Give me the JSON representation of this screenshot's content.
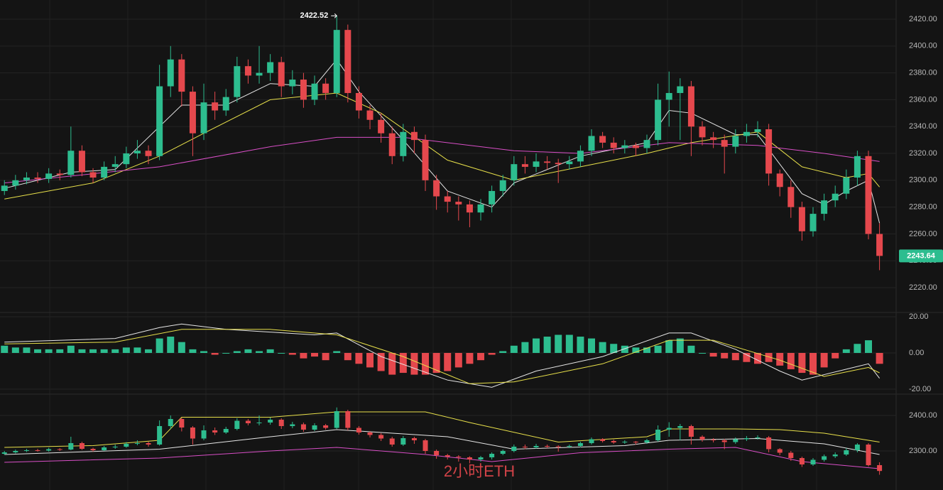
{
  "watermark": "2小时ETH",
  "chart_data": [
    {
      "type": "candlestick",
      "xlim": [
        -0.4,
        80.5
      ],
      "ylim": [
        2201.5,
        2434.3
      ],
      "grid": true,
      "up_color": "#2dbd8f",
      "down_color": "#e5484d",
      "yticks": [
        {
          "value": 2220,
          "label": "2220.00"
        },
        {
          "value": 2240,
          "label": "2240.00"
        },
        {
          "value": 2260,
          "label": "2260.00"
        },
        {
          "value": 2280,
          "label": "2280.00"
        },
        {
          "value": 2300,
          "label": "2300.00"
        },
        {
          "value": 2320,
          "label": "2320.00"
        },
        {
          "value": 2340,
          "label": "2340.00"
        },
        {
          "value": 2360,
          "label": "2360.00"
        },
        {
          "value": 2380,
          "label": "2380.00"
        },
        {
          "value": 2400,
          "label": "2400.00"
        },
        {
          "value": 2420,
          "label": "2420.00"
        }
      ],
      "open": [
        2292,
        2296,
        2300,
        2302,
        2301,
        2305,
        2304,
        2322,
        2306,
        2302,
        2310,
        2312,
        2320,
        2322,
        2318,
        2370,
        2390,
        2366,
        2335,
        2358,
        2352,
        2362,
        2385,
        2378,
        2380,
        2388,
        2370,
        2375,
        2360,
        2372,
        2365,
        2412,
        2365,
        2352,
        2345,
        2335,
        2318,
        2336,
        2330,
        2300,
        2288,
        2284,
        2282,
        2276,
        2282,
        2292,
        2300,
        2312,
        2310,
        2314,
        2313,
        2312,
        2314,
        2322,
        2333,
        2328,
        2324,
        2326,
        2324,
        2330,
        2360,
        2365,
        2370,
        2340,
        2332,
        2330,
        2325,
        2333,
        2336,
        2338,
        2305,
        2295,
        2280,
        2262,
        2275,
        2285,
        2290,
        2302,
        2318,
        2260
      ],
      "high": [
        2300,
        2304,
        2306,
        2306,
        2309,
        2308,
        2340,
        2326,
        2309,
        2314,
        2318,
        2325,
        2330,
        2326,
        2386,
        2400,
        2394,
        2370,
        2372,
        2366,
        2368,
        2392,
        2390,
        2400,
        2394,
        2392,
        2382,
        2380,
        2378,
        2376,
        2422.52,
        2416,
        2370,
        2356,
        2350,
        2340,
        2342,
        2340,
        2334,
        2304,
        2292,
        2288,
        2285,
        2286,
        2296,
        2304,
        2318,
        2318,
        2320,
        2318,
        2316,
        2318,
        2326,
        2338,
        2336,
        2332,
        2330,
        2328,
        2334,
        2372,
        2381,
        2376,
        2374,
        2344,
        2336,
        2334,
        2338,
        2342,
        2344,
        2342,
        2308,
        2300,
        2284,
        2280,
        2290,
        2296,
        2308,
        2322,
        2322,
        2268
      ],
      "low": [
        2289,
        2293,
        2297,
        2298,
        2298,
        2300,
        2302,
        2303,
        2298,
        2300,
        2306,
        2309,
        2316,
        2312,
        2315,
        2362,
        2355,
        2318,
        2330,
        2345,
        2348,
        2358,
        2372,
        2372,
        2374,
        2362,
        2364,
        2354,
        2356,
        2360,
        2362,
        2358,
        2346,
        2338,
        2328,
        2312,
        2314,
        2320,
        2292,
        2278,
        2276,
        2270,
        2265,
        2270,
        2276,
        2288,
        2296,
        2305,
        2306,
        2308,
        2298,
        2308,
        2310,
        2318,
        2324,
        2320,
        2320,
        2318,
        2320,
        2326,
        2340,
        2330,
        2318,
        2326,
        2324,
        2305,
        2320,
        2328,
        2332,
        2296,
        2288,
        2272,
        2255,
        2258,
        2270,
        2280,
        2286,
        2296,
        2256,
        2233
      ],
      "close": [
        2296,
        2300,
        2302,
        2301,
        2305,
        2304,
        2322,
        2306,
        2302,
        2310,
        2312,
        2320,
        2322,
        2318,
        2370,
        2390,
        2366,
        2335,
        2358,
        2352,
        2362,
        2385,
        2378,
        2380,
        2388,
        2370,
        2375,
        2360,
        2372,
        2365,
        2412,
        2365,
        2352,
        2345,
        2335,
        2318,
        2336,
        2330,
        2300,
        2288,
        2284,
        2282,
        2276,
        2282,
        2292,
        2300,
        2312,
        2310,
        2314,
        2313,
        2312,
        2314,
        2322,
        2333,
        2328,
        2324,
        2326,
        2324,
        2330,
        2360,
        2365,
        2370,
        2340,
        2332,
        2330,
        2325,
        2333,
        2336,
        2338,
        2305,
        2295,
        2280,
        2262,
        2275,
        2285,
        2290,
        2302,
        2318,
        2260,
        2243.64
      ],
      "series": [
        {
          "color": "#e6e6e6",
          "x": [
            0,
            6,
            10,
            14,
            16,
            20,
            24,
            28,
            30,
            32,
            36,
            40,
            44,
            46,
            52,
            58,
            60,
            62,
            66,
            68,
            72,
            74,
            76,
            78,
            79
          ],
          "values": [
            2294,
            2306,
            2308,
            2340,
            2356,
            2356,
            2372,
            2370,
            2390,
            2366,
            2330,
            2292,
            2280,
            2298,
            2318,
            2328,
            2352,
            2350,
            2334,
            2334,
            2290,
            2282,
            2292,
            2300,
            2268
          ]
        },
        {
          "color": "#e8e04a",
          "x": [
            0,
            8,
            14,
            18,
            24,
            30,
            34,
            40,
            46,
            52,
            58,
            62,
            68,
            72,
            76,
            78,
            79
          ],
          "values": [
            2286,
            2298,
            2318,
            2335,
            2360,
            2365,
            2350,
            2315,
            2300,
            2310,
            2320,
            2328,
            2336,
            2310,
            2302,
            2305,
            2295
          ]
        },
        {
          "color": "#d94fc7",
          "x": [
            0,
            14,
            24,
            30,
            36,
            46,
            52,
            60,
            68,
            74,
            79
          ],
          "values": [
            2298,
            2310,
            2325,
            2332,
            2332,
            2322,
            2320,
            2328,
            2326,
            2320,
            2314
          ]
        }
      ]
    },
    {
      "type": "bar",
      "xlim": [
        -0.4,
        80.5
      ],
      "ylim": [
        -22.75,
        22.35
      ],
      "grid": true,
      "up_color": "#2dbd8f",
      "down_color": "#e5484d",
      "yticks": [
        {
          "value": -20,
          "label": "-20.00"
        },
        {
          "value": 0,
          "label": "0.00"
        },
        {
          "value": 20,
          "label": "20.00"
        }
      ],
      "values": [
        4,
        3,
        3,
        2,
        2,
        2,
        4,
        2,
        2,
        2,
        2,
        3,
        3,
        2,
        8,
        9,
        6,
        2,
        1,
        -1,
        0,
        1,
        2,
        1,
        2,
        0,
        -1,
        -3,
        -2,
        -4,
        1,
        -4,
        -6,
        -8,
        -10,
        -12,
        -11,
        -12,
        -12,
        -11,
        -10,
        -8,
        -6,
        -4,
        -1,
        1,
        4,
        6,
        8,
        9,
        10,
        10,
        9,
        8,
        6,
        5,
        4,
        3,
        3,
        4,
        7,
        8,
        4,
        0,
        -2,
        -3,
        -4,
        -5,
        -6,
        -5,
        -7,
        -9,
        -11,
        -12,
        -8,
        -3,
        2,
        5,
        7,
        -6
      ],
      "series": [
        {
          "color": "#e6e6e6",
          "x": [
            0,
            10,
            14,
            16,
            20,
            28,
            30,
            34,
            40,
            44,
            48,
            54,
            60,
            62,
            66,
            70,
            72,
            76,
            78,
            79
          ],
          "values": [
            6,
            8,
            14,
            16,
            13,
            10,
            11,
            -2,
            -15,
            -19,
            -10,
            -2,
            11,
            11,
            2,
            -10,
            -15,
            -9,
            -6,
            -14
          ]
        },
        {
          "color": "#e8e04a",
          "x": [
            0,
            10,
            16,
            24,
            30,
            36,
            42,
            46,
            54,
            60,
            64,
            70,
            74,
            78,
            79
          ],
          "values": [
            5,
            6,
            13,
            13,
            10,
            -2,
            -17,
            -16,
            -6,
            7,
            7,
            -4,
            -13,
            -8,
            -11
          ]
        }
      ]
    },
    {
      "type": "line",
      "xlim": [
        -0.4,
        80.5
      ],
      "ylim": [
        2190,
        2460
      ],
      "grid": true,
      "yticks": [
        {
          "value": 2300,
          "label": "2300.00"
        },
        {
          "value": 2400,
          "label": "2400.00"
        }
      ],
      "series": [
        {
          "color": "#e8e04a",
          "x": [
            0,
            8,
            14,
            16,
            24,
            30,
            38,
            42,
            50,
            58,
            60,
            66,
            70,
            74,
            79
          ],
          "values": [
            2310,
            2315,
            2330,
            2395,
            2395,
            2410,
            2410,
            2380,
            2325,
            2340,
            2362,
            2362,
            2360,
            2350,
            2325
          ]
        },
        {
          "color": "#e6e6e6",
          "x": [
            0,
            14,
            24,
            30,
            40,
            46,
            56,
            60,
            68,
            74,
            79
          ],
          "values": [
            2290,
            2305,
            2340,
            2360,
            2340,
            2305,
            2315,
            2330,
            2335,
            2320,
            2290
          ]
        },
        {
          "color": "#d94fc7",
          "x": [
            0,
            14,
            24,
            30,
            38,
            44,
            52,
            60,
            66,
            72,
            79
          ],
          "values": [
            2268,
            2280,
            2300,
            2310,
            2290,
            2270,
            2295,
            2305,
            2310,
            2270,
            2250
          ]
        }
      ]
    }
  ]
}
